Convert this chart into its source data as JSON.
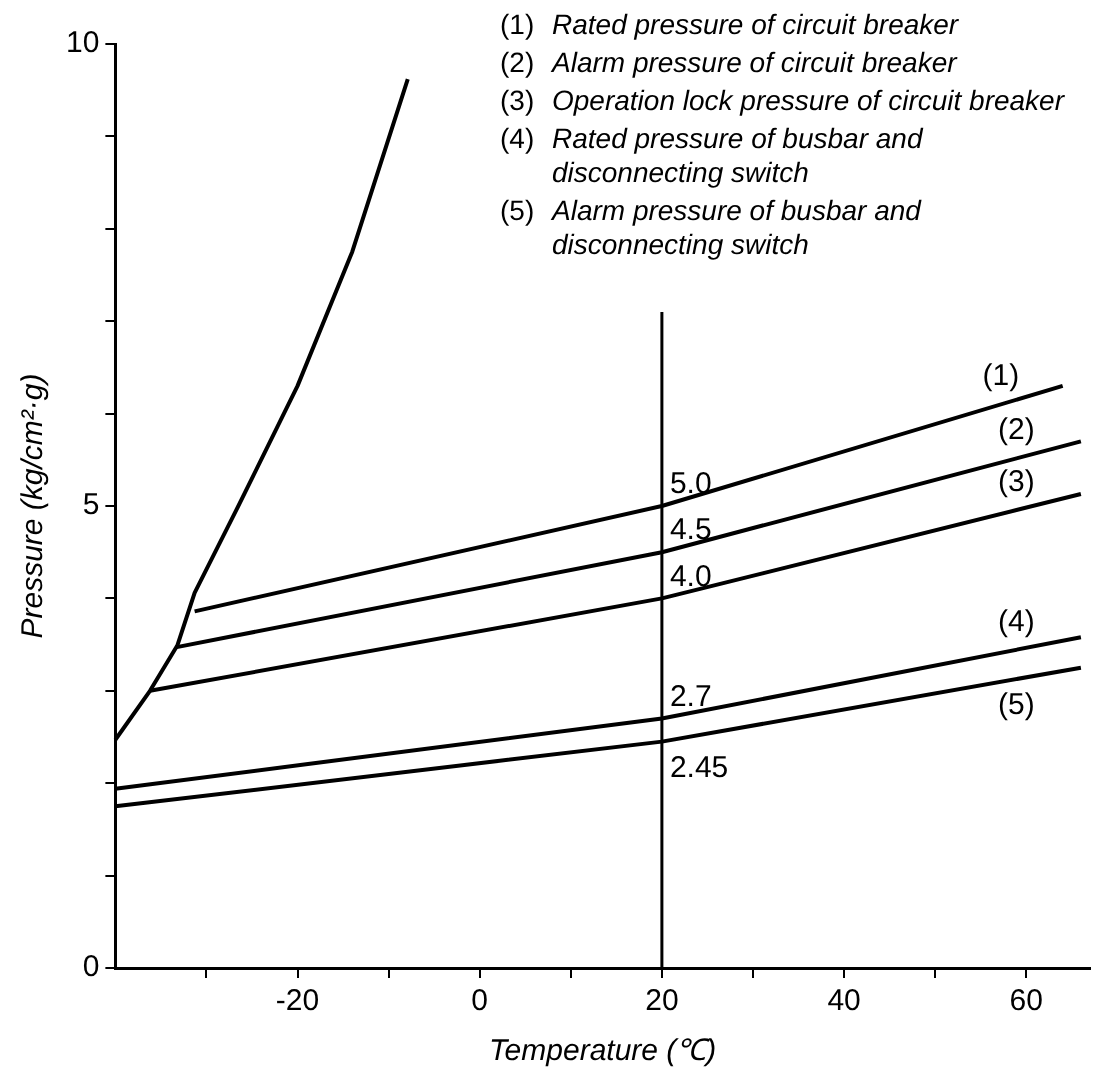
{
  "chart_data": {
    "type": "line",
    "xlabel": "Temperature (℃)",
    "ylabel": "Pressure (kg/cm²·g)",
    "xlim": [
      -40,
      67
    ],
    "ylim": [
      0,
      10
    ],
    "xticks": [
      {
        "value": -30,
        "label": null
      },
      -20,
      {
        "value": -10,
        "label": null
      },
      0,
      {
        "value": 10,
        "label": null
      },
      20,
      {
        "value": 30,
        "label": null
      },
      40,
      {
        "value": 50,
        "label": null
      },
      60
    ],
    "yticks": [
      0,
      {
        "value": 1,
        "label": null
      },
      {
        "value": 2,
        "label": null
      },
      {
        "value": 3,
        "label": null
      },
      {
        "value": 4,
        "label": null
      },
      5,
      {
        "value": 6,
        "label": null
      },
      {
        "value": 7,
        "label": null
      },
      {
        "value": 8,
        "label": null
      },
      {
        "value": 9,
        "label": null
      },
      10
    ],
    "grid": false,
    "legend": false,
    "marker": "none",
    "line_style": "solid",
    "series": [
      {
        "color": "#000000",
        "x": [
          -40,
          -36.2,
          -33.2,
          -31.3,
          -26.7,
          -20,
          -14,
          -7.9
        ],
        "values": [
          2.47,
          3.0,
          3.49,
          4.06,
          4.96,
          6.3,
          7.75,
          9.62
        ]
      },
      {
        "name": "(1)",
        "color": "#000000",
        "x": [
          -31.3,
          20,
          64
        ],
        "values": [
          3.86,
          5.0,
          6.3
        ],
        "value_labels": [
          null,
          "5.0",
          null
        ]
      },
      {
        "name": "(2)",
        "color": "#000000",
        "x": [
          -33.4,
          20,
          66
        ],
        "values": [
          3.47,
          4.5,
          5.7
        ],
        "value_labels": [
          null,
          "4.5",
          null
        ]
      },
      {
        "name": "(3)",
        "color": "#000000",
        "x": [
          -36.2,
          20,
          66
        ],
        "values": [
          3.0,
          4.0,
          5.13
        ],
        "value_labels": [
          null,
          "4.0",
          null
        ]
      },
      {
        "name": "(4)",
        "color": "#000000",
        "x": [
          -40,
          20,
          66
        ],
        "values": [
          1.94,
          2.7,
          3.58
        ],
        "value_labels": [
          null,
          "2.7",
          null
        ]
      },
      {
        "name": "(5)",
        "color": "#000000",
        "x": [
          -40,
          20,
          66
        ],
        "values": [
          1.75,
          2.45,
          3.25
        ],
        "value_labels": [
          null,
          "2.45",
          null
        ]
      }
    ],
    "ref_lines": [
      {
        "axis": "x",
        "value": 20,
        "color": "#000000"
      }
    ],
    "annotations": [
      "(1) Rated pressure of circuit breaker",
      "(2) Alarm pressure of circuit breaker",
      "(3) Operation lock pressure of circuit breaker",
      "(4) Rated pressure of busbar and disconnecting switch",
      "(5) Alarm pressure of busbar and disconnecting switch"
    ]
  }
}
